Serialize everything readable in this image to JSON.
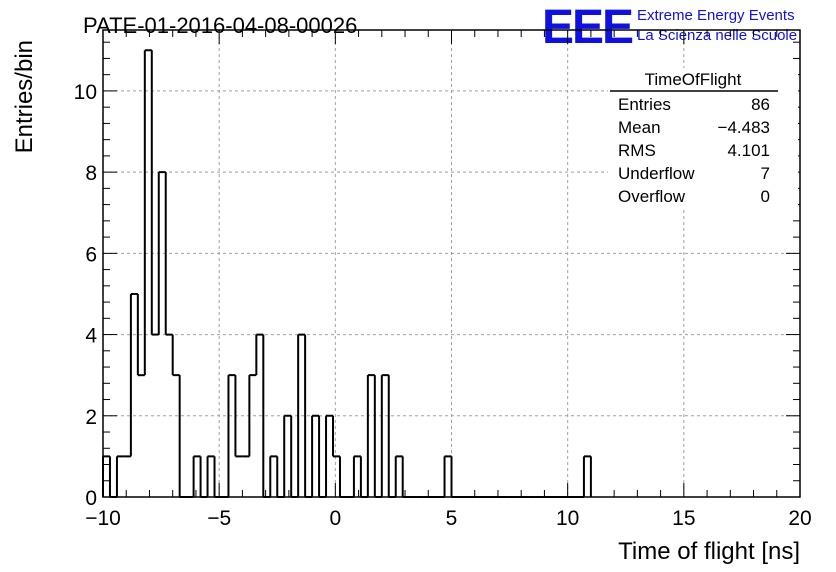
{
  "chart_data": {
    "type": "histogram",
    "title": "PATE-01-2016-04-08-00026",
    "xlabel": "Time of flight [ns]",
    "ylabel": "Entries/bin",
    "xlim": [
      -10,
      20
    ],
    "ylim": [
      0,
      11.5
    ],
    "bin_width": 0.3,
    "bin_start": -10,
    "values": [
      1,
      0,
      1,
      1,
      5,
      3,
      11,
      4,
      8,
      4,
      3,
      0,
      0,
      1,
      0,
      1,
      0,
      0,
      3,
      1,
      1,
      3,
      4,
      0,
      1,
      0,
      2,
      0,
      4,
      0,
      2,
      0,
      2,
      1,
      0,
      0,
      1,
      0,
      3,
      0,
      3,
      0,
      1,
      0,
      0,
      0,
      0,
      0,
      0,
      1,
      0,
      0,
      0,
      0,
      0,
      0,
      0,
      0,
      0,
      0,
      0,
      0,
      0,
      0,
      0,
      0,
      0,
      0,
      0,
      1
    ],
    "x_ticks": [
      -10,
      -5,
      0,
      5,
      10,
      15,
      20
    ],
    "x_tick_labels": [
      "−10",
      "−5",
      "0",
      "5",
      "10",
      "15",
      "20"
    ],
    "y_ticks": [
      0,
      2,
      4,
      6,
      8,
      10
    ],
    "y_tick_labels": [
      "0",
      "2",
      "4",
      "6",
      "8",
      "10"
    ],
    "grid": true,
    "stats_box": {
      "title": "TimeOfFlight",
      "rows": [
        {
          "label": "Entries",
          "value": "86"
        },
        {
          "label": "Mean",
          "value": "−4.483"
        },
        {
          "label": "RMS",
          "value": "4.101"
        },
        {
          "label": "Underflow",
          "value": "7"
        },
        {
          "label": "Overflow",
          "value": "0"
        }
      ]
    }
  },
  "logo": {
    "mark": "EEE",
    "line1": "Extreme Energy Events",
    "line2": "La Scienza nelle Scuole",
    "color": "#1010e0"
  }
}
